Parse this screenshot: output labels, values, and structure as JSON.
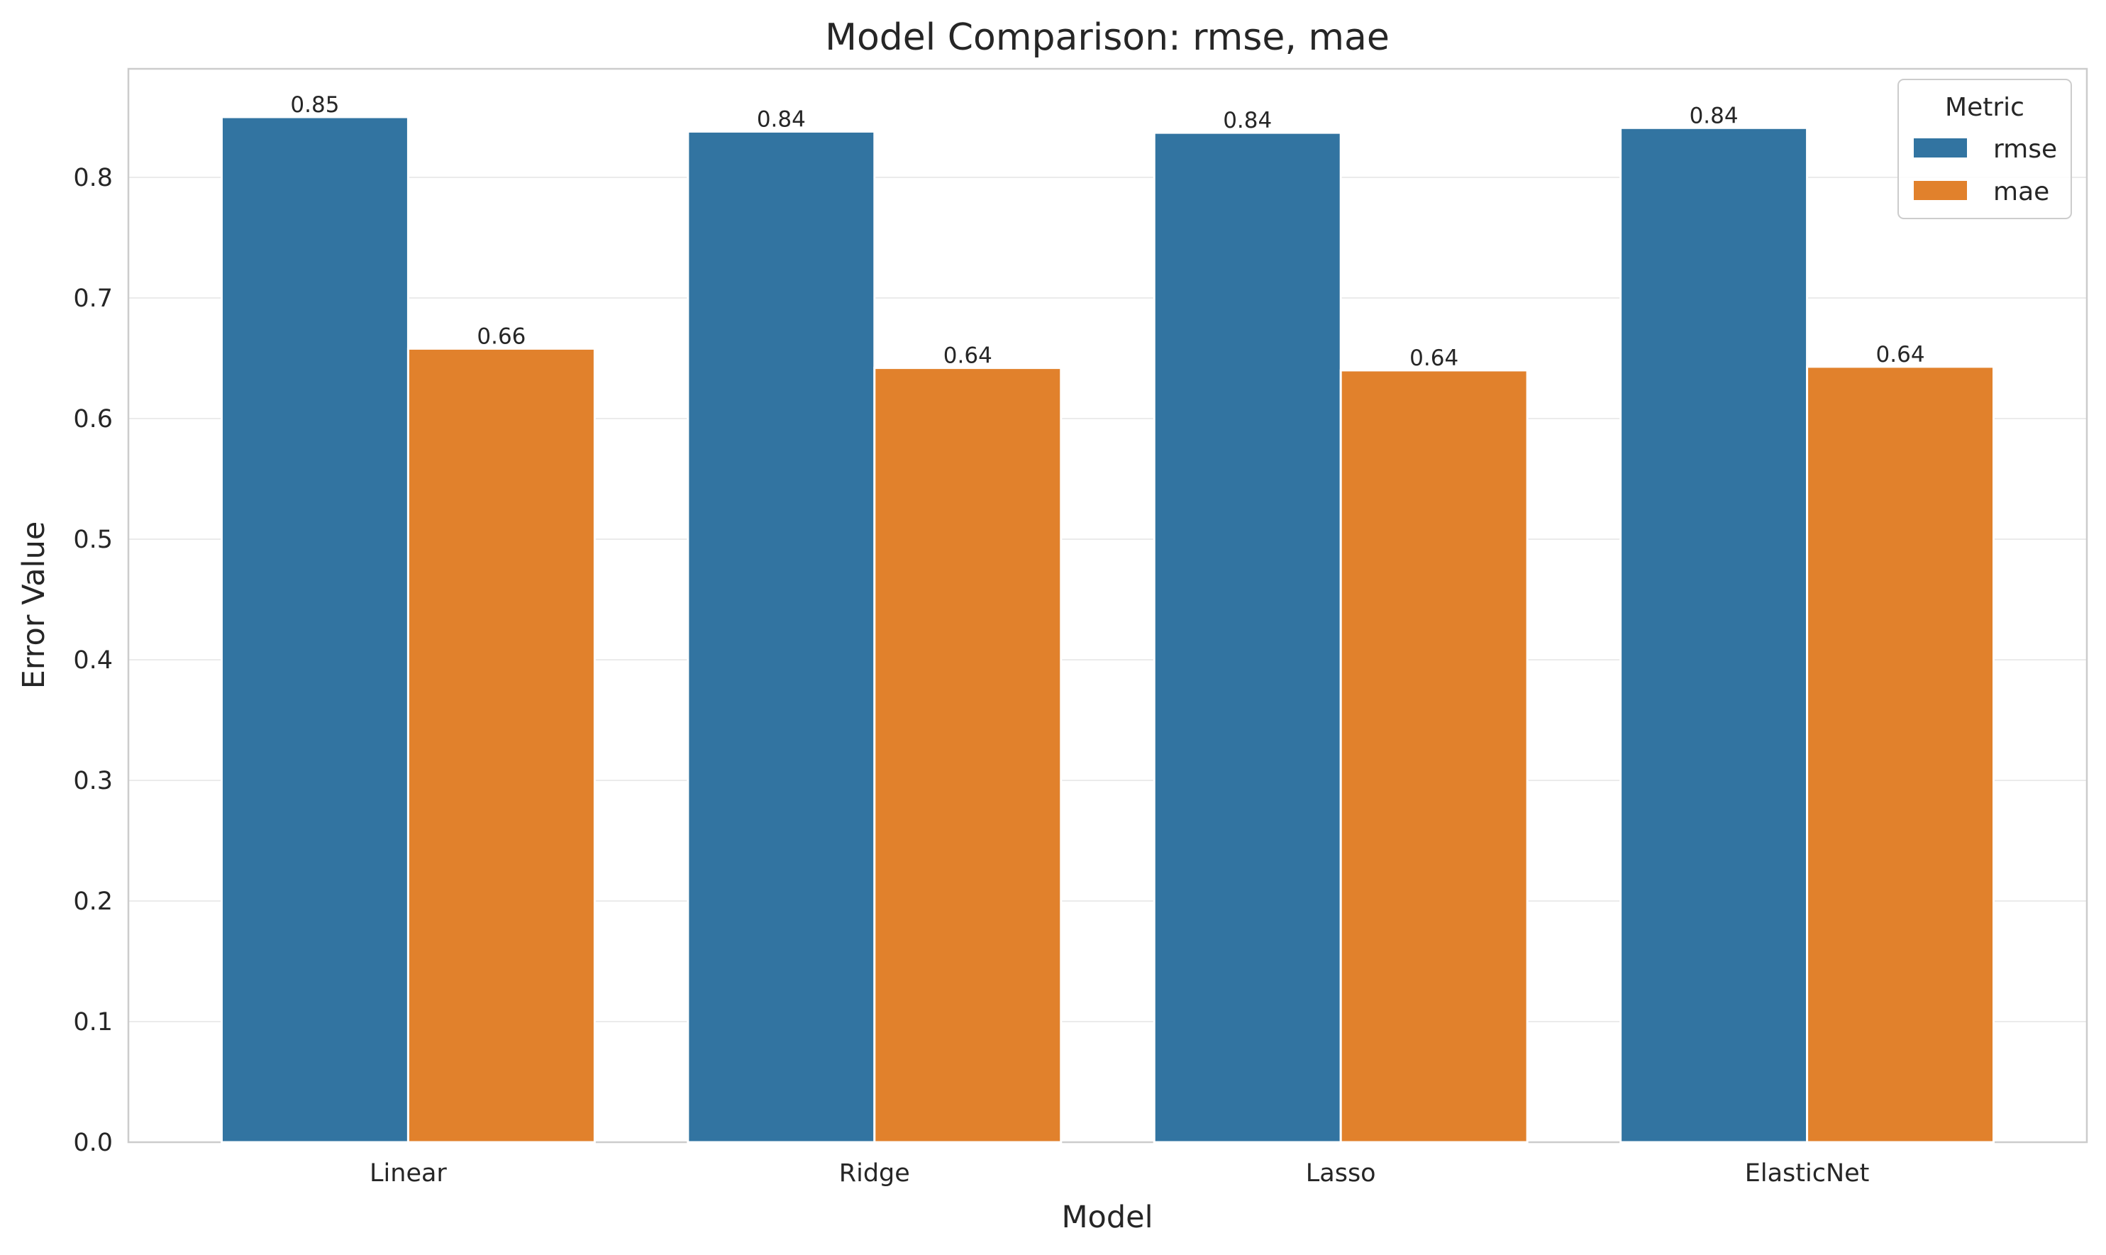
{
  "chart_data": {
    "type": "bar",
    "title": "Model Comparison: rmse, mae",
    "xlabel": "Model",
    "ylabel": "Error Value",
    "categories": [
      "Linear",
      "Ridge",
      "Lasso",
      "ElasticNet"
    ],
    "series": [
      {
        "name": "rmse",
        "values": [
          0.85,
          0.838,
          0.837,
          0.841
        ],
        "labels": [
          "0.85",
          "0.84",
          "0.84",
          "0.84"
        ]
      },
      {
        "name": "mae",
        "values": [
          0.658,
          0.642,
          0.64,
          0.643
        ],
        "labels": [
          "0.66",
          "0.64",
          "0.64",
          "0.64"
        ]
      }
    ],
    "ylim": [
      0,
      0.89
    ],
    "yticks": [
      0.0,
      0.1,
      0.2,
      0.3,
      0.4,
      0.5,
      0.6,
      0.7,
      0.8
    ],
    "ytick_labels": [
      "0.0",
      "0.1",
      "0.2",
      "0.3",
      "0.4",
      "0.5",
      "0.6",
      "0.7",
      "0.8"
    ],
    "grid": "y",
    "legend": {
      "title": "Metric",
      "position": "top-right"
    },
    "colors": {
      "rmse": "#3274a1",
      "mae": "#e1812c"
    }
  }
}
